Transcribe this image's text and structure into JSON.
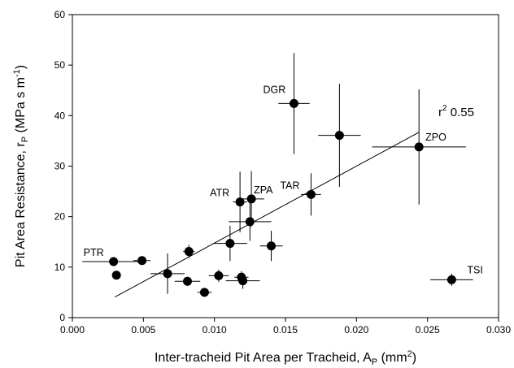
{
  "chart_data": {
    "type": "scatter",
    "xlabel": "Inter-tracheid Pit Area per Tracheid, A",
    "xlabel_sub": "P",
    "xlabel_unit_open": " (mm",
    "xlabel_unit_sup": "2",
    "xlabel_unit_close": ")",
    "ylabel": "Pit Area Resistance, r",
    "ylabel_sub": "P",
    "ylabel_unit_open": " (MPa s m",
    "ylabel_unit_sup": "-1",
    "ylabel_unit_close": ")",
    "xlim": [
      0.0,
      0.03
    ],
    "ylim": [
      0,
      60
    ],
    "x_ticks": [
      0.0,
      0.005,
      0.01,
      0.015,
      0.02,
      0.025,
      0.03
    ],
    "x_tick_labels": [
      "0.000",
      "0.005",
      "0.010",
      "0.015",
      "0.020",
      "0.025",
      "0.030"
    ],
    "y_ticks": [
      0,
      10,
      20,
      30,
      40,
      50,
      60
    ],
    "y_tick_labels": [
      "0",
      "10",
      "20",
      "30",
      "40",
      "50",
      "60"
    ],
    "grid": false,
    "points": [
      {
        "x": 0.0029,
        "y": 11.1,
        "xerr": 0.0022,
        "yerr": 0.0,
        "label": "PTR"
      },
      {
        "x": 0.0031,
        "y": 8.4,
        "xerr": 0.0,
        "yerr": 0.0,
        "label": ""
      },
      {
        "x": 0.0049,
        "y": 11.3,
        "xerr": 0.0006,
        "yerr": 0.6,
        "label": ""
      },
      {
        "x": 0.0067,
        "y": 8.7,
        "xerr": 0.0012,
        "yerr": 4.0,
        "label": ""
      },
      {
        "x": 0.0081,
        "y": 7.2,
        "xerr": 0.0009,
        "yerr": 0.9,
        "label": ""
      },
      {
        "x": 0.0082,
        "y": 13.1,
        "xerr": 0.0004,
        "yerr": 1.3,
        "label": ""
      },
      {
        "x": 0.0093,
        "y": 5.0,
        "xerr": 0.0005,
        "yerr": 0.5,
        "label": ""
      },
      {
        "x": 0.0103,
        "y": 8.3,
        "xerr": 0.0007,
        "yerr": 1.2,
        "label": ""
      },
      {
        "x": 0.0111,
        "y": 14.7,
        "xerr": 0.0012,
        "yerr": 3.5,
        "label": ""
      },
      {
        "x": 0.0118,
        "y": 22.9,
        "xerr": 0.0005,
        "yerr": 6.0,
        "label": "ATR"
      },
      {
        "x": 0.0119,
        "y": 8.0,
        "xerr": 0.0005,
        "yerr": 1.2,
        "label": ""
      },
      {
        "x": 0.012,
        "y": 7.3,
        "xerr": 0.0012,
        "yerr": 1.6,
        "label": ""
      },
      {
        "x": 0.0125,
        "y": 19.0,
        "xerr": 0.0015,
        "yerr": 3.8,
        "label": ""
      },
      {
        "x": 0.0126,
        "y": 23.5,
        "xerr": 0.0009,
        "yerr": 5.5,
        "label": "ZPA"
      },
      {
        "x": 0.014,
        "y": 14.2,
        "xerr": 0.0008,
        "yerr": 3.0,
        "label": ""
      },
      {
        "x": 0.0156,
        "y": 42.4,
        "xerr": 0.0011,
        "yerr": 10.0,
        "label": "DGR"
      },
      {
        "x": 0.0168,
        "y": 24.4,
        "xerr": 0.0007,
        "yerr": 4.2,
        "label": "TAR"
      },
      {
        "x": 0.0188,
        "y": 36.1,
        "xerr": 0.0015,
        "yerr": 10.2,
        "label": ""
      },
      {
        "x": 0.0244,
        "y": 33.8,
        "xerr": 0.0033,
        "yerr": 11.4,
        "label": "ZPO"
      },
      {
        "x": 0.0267,
        "y": 7.5,
        "xerr": 0.0015,
        "yerr": 1.2,
        "label": "TSI"
      }
    ],
    "regression": {
      "x": [
        0.003,
        0.0244
      ],
      "y": [
        4.1,
        36.7
      ]
    },
    "r2_label": "r",
    "r2_sup": "2",
    "r2_value": " 0.55"
  }
}
